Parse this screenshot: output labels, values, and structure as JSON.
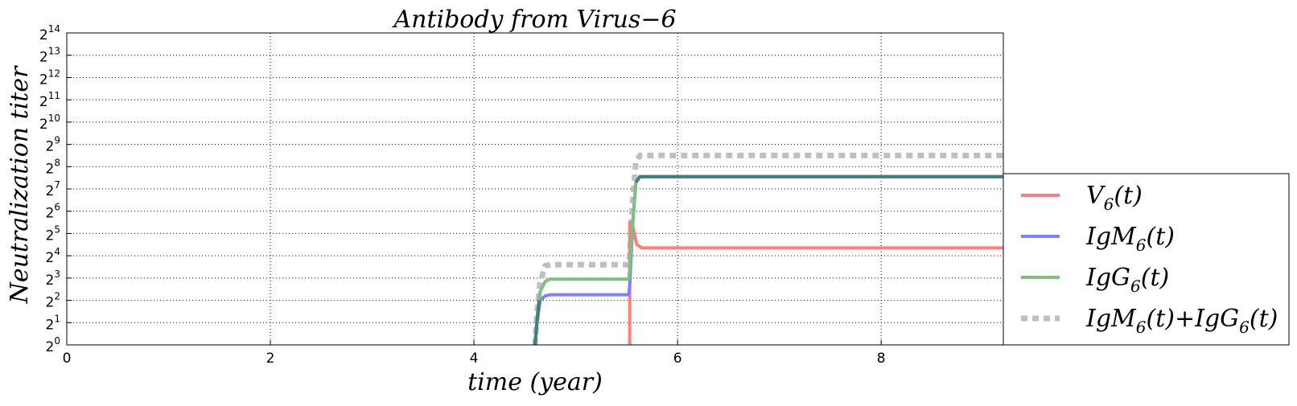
{
  "chart_data": {
    "type": "line",
    "title": "Antibody from Virus−6",
    "xlabel": "time (year)",
    "ylabel": "Neutralization  titer",
    "xlim": [
      0,
      9.2
    ],
    "ylim_exponent": [
      0,
      14
    ],
    "y_scale": "log2",
    "x_ticks": [
      "0",
      "2",
      "4",
      "6",
      "8"
    ],
    "y_tick_base": "2",
    "y_tick_exponents": [
      "0",
      "1",
      "2",
      "3",
      "4",
      "5",
      "6",
      "7",
      "8",
      "9",
      "10",
      "11",
      "12",
      "13",
      "14"
    ],
    "grid": true,
    "legend_position": "lower-right-outside",
    "series": [
      {
        "name": "V6(t)",
        "legend": {
          "base": "V",
          "sub": "6",
          "tail": "(t)"
        },
        "color": "#ff7f7f",
        "style": "solid",
        "points": [
          [
            5.53,
            0
          ],
          [
            5.53,
            5.5
          ],
          [
            5.56,
            5.3
          ],
          [
            5.6,
            4.5
          ],
          [
            5.65,
            4.35
          ],
          [
            9.2,
            4.35
          ]
        ]
      },
      {
        "name": "IgM6(t)",
        "legend": {
          "base": "IgM",
          "sub": "6",
          "tail": "(t)"
        },
        "color": "#7f7fff",
        "style": "solid",
        "points": [
          [
            4.6,
            0
          ],
          [
            4.62,
            1.0
          ],
          [
            4.65,
            2.0
          ],
          [
            4.7,
            2.2
          ],
          [
            4.75,
            2.25
          ],
          [
            5.52,
            2.25
          ],
          [
            5.53,
            2.7
          ],
          [
            5.56,
            5.5
          ],
          [
            5.59,
            7.3
          ],
          [
            5.63,
            7.55
          ],
          [
            9.2,
            7.55
          ]
        ]
      },
      {
        "name": "IgG6(t)",
        "legend": {
          "base": "IgG",
          "sub": "6",
          "tail": "(t)"
        },
        "color": "#7fbf7f",
        "style": "solid",
        "points": [
          [
            4.6,
            0
          ],
          [
            4.62,
            1.2
          ],
          [
            4.65,
            2.4
          ],
          [
            4.7,
            2.85
          ],
          [
            4.75,
            2.95
          ],
          [
            5.52,
            2.95
          ],
          [
            5.53,
            3.4
          ],
          [
            5.56,
            5.5
          ],
          [
            5.59,
            7.3
          ],
          [
            5.63,
            7.55
          ],
          [
            9.2,
            7.55
          ]
        ]
      },
      {
        "name": "IgM6(t)+IgG6(t)",
        "legend": {
          "base": "IgM",
          "sub": "6",
          "tail": "(t)",
          "base2": "IgG",
          "sub2": "6",
          "tail2": "(t)"
        },
        "color": "#bfbfbf",
        "style": "dotted",
        "points": [
          [
            4.6,
            0
          ],
          [
            4.62,
            1.5
          ],
          [
            4.65,
            2.8
          ],
          [
            4.7,
            3.55
          ],
          [
            4.75,
            3.6
          ],
          [
            5.52,
            3.6
          ],
          [
            5.53,
            4.1
          ],
          [
            5.56,
            6.5
          ],
          [
            5.59,
            8.2
          ],
          [
            5.63,
            8.5
          ],
          [
            9.2,
            8.5
          ]
        ]
      }
    ],
    "overlap_color": "#3f7f7f"
  }
}
